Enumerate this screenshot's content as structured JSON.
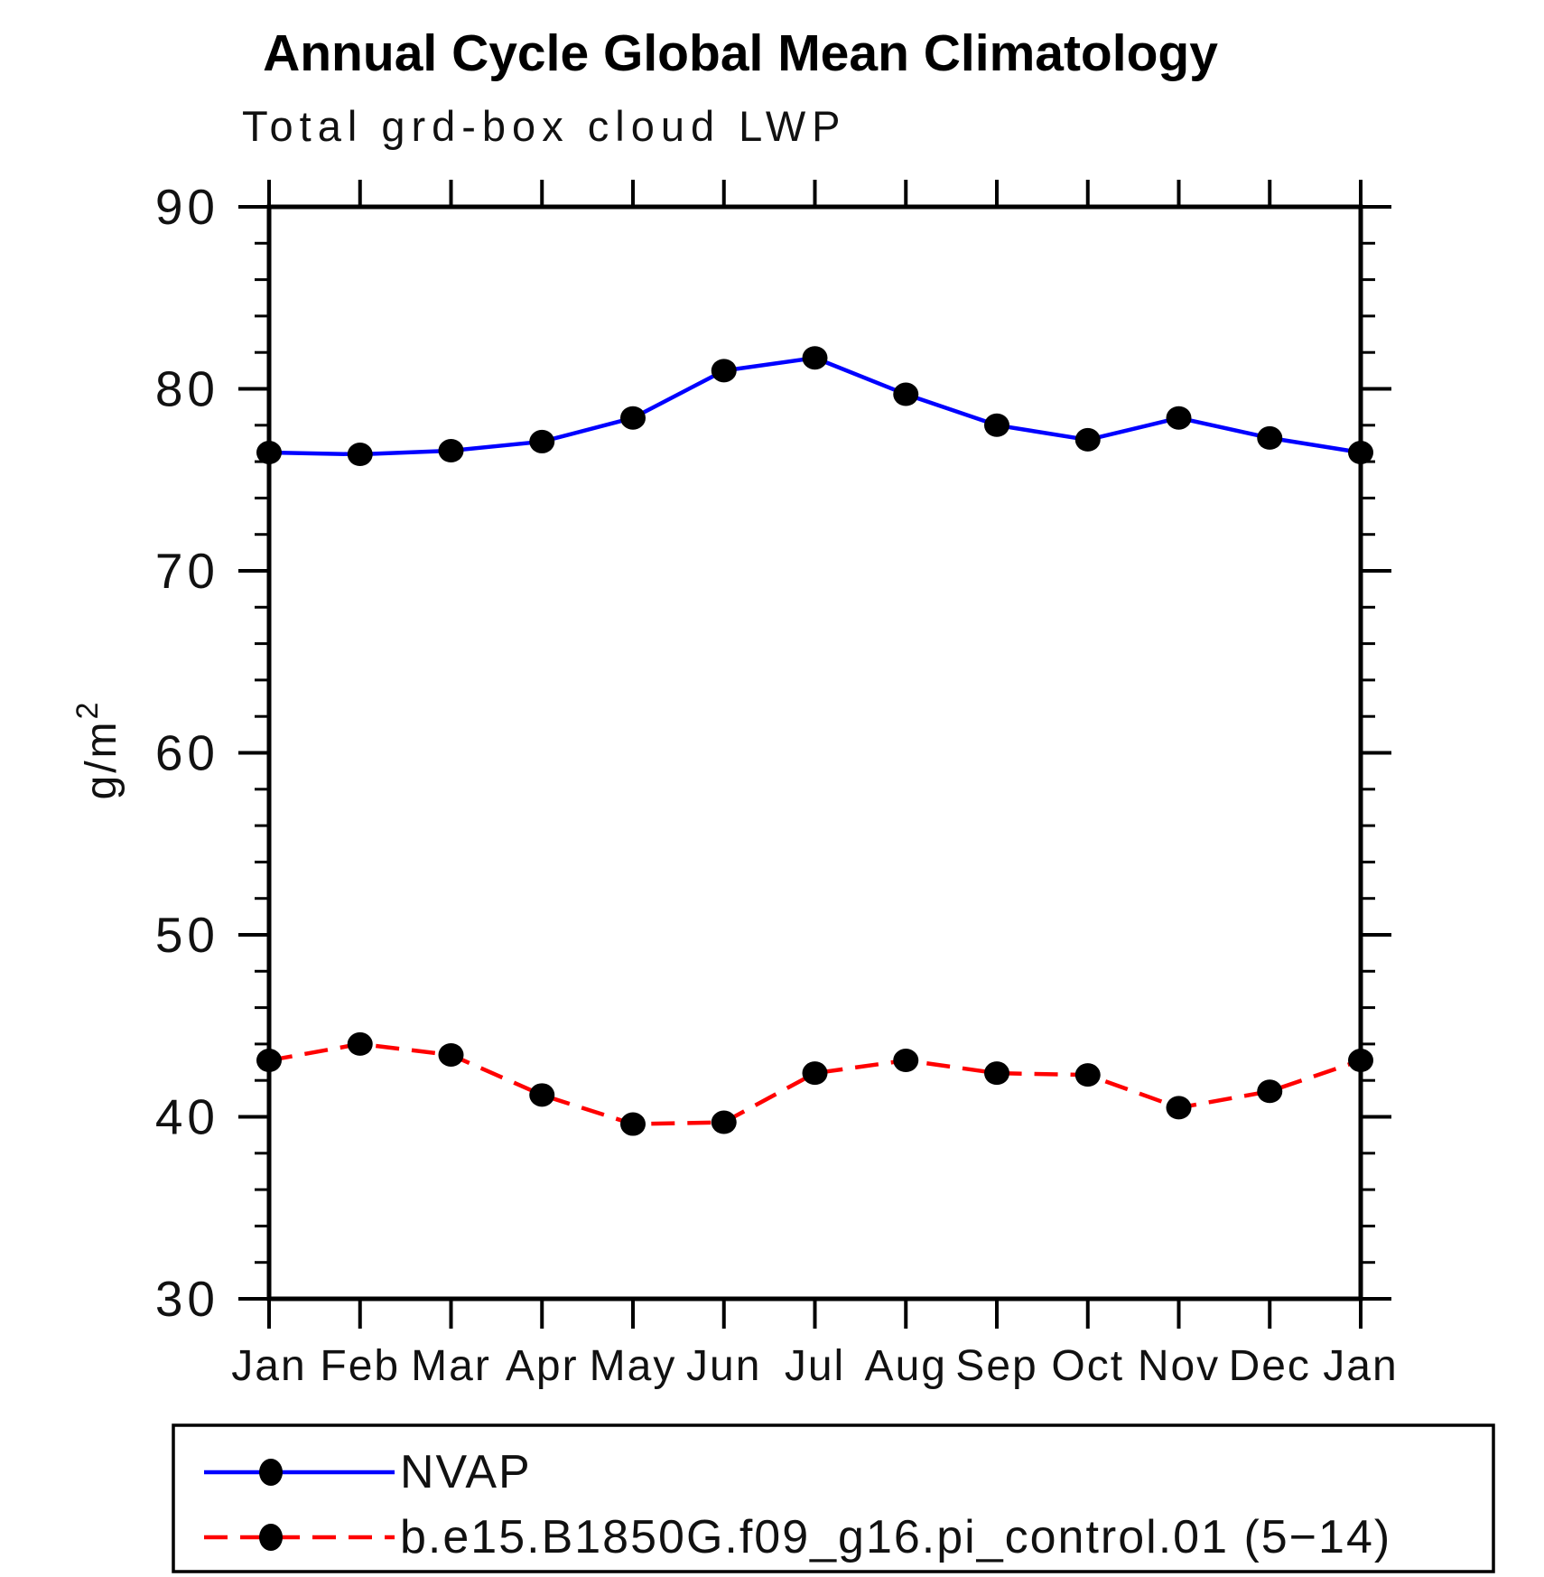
{
  "header": {
    "title": "Annual Cycle Global Mean Climatology",
    "subtitle": "Total grd-box cloud LWP"
  },
  "chart_data": {
    "type": "line",
    "title": "Annual Cycle Global Mean Climatology",
    "subtitle": "Total grd-box cloud LWP",
    "ylabel": "g/m²",
    "xlabel": "",
    "ylim": [
      30,
      90
    ],
    "y_major_ticks": [
      30,
      40,
      50,
      60,
      70,
      80,
      90
    ],
    "y_minor_step": 2,
    "grid": false,
    "legend_position": "bottom",
    "x_categories": [
      "Jan",
      "Feb",
      "Mar",
      "Apr",
      "May",
      "Jun",
      "Jul",
      "Aug",
      "Sep",
      "Oct",
      "Nov",
      "Dec",
      "Jan"
    ],
    "series": [
      {
        "name": "NVAP",
        "color": "#0000ff",
        "line_style": "solid",
        "marker": "filled-circle",
        "marker_color": "#000000",
        "values": [
          76.5,
          76.4,
          76.6,
          77.1,
          78.4,
          81.0,
          81.7,
          79.7,
          78.0,
          77.2,
          78.4,
          77.3,
          76.5
        ]
      },
      {
        "name": "b.e15.B1850G.f09_g16.pi_control.01 (5−14)",
        "color": "#ff0000",
        "line_style": "dashed",
        "marker": "filled-circle",
        "marker_color": "#000000",
        "values": [
          43.1,
          44.0,
          43.4,
          41.2,
          39.6,
          39.7,
          42.4,
          43.1,
          42.4,
          42.3,
          40.5,
          41.4,
          43.1
        ]
      }
    ]
  }
}
